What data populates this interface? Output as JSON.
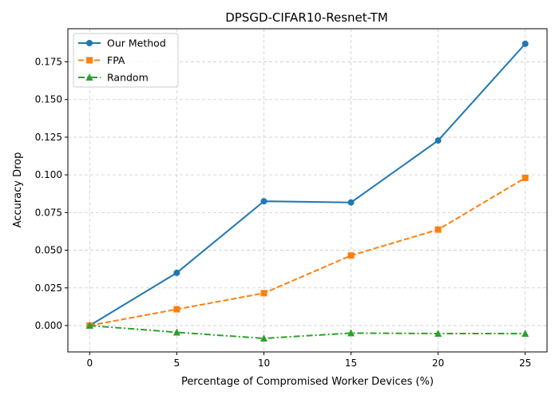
{
  "chart_data": {
    "type": "line",
    "title": "DPSGD-CIFAR10-Resnet-TM",
    "xlabel": "Percentage of Compromised Worker Devices (%)",
    "ylabel": "Accuracy Drop",
    "x": [
      0,
      5,
      10,
      15,
      20,
      25
    ],
    "xticks": [
      "0",
      "5",
      "10",
      "15",
      "20",
      "25"
    ],
    "yticks": [
      "0.000",
      "0.025",
      "0.050",
      "0.075",
      "0.100",
      "0.125",
      "0.150",
      "0.175"
    ],
    "xlim": [
      -1.25,
      26.25
    ],
    "ylim": [
      -0.0175,
      0.197
    ],
    "grid": true,
    "legend_position": "top-left",
    "series": [
      {
        "name": "Our Method",
        "values": [
          0.0,
          0.035,
          0.0825,
          0.0817,
          0.1228,
          0.187
        ],
        "color": "#1f77b4",
        "marker": "circle",
        "linestyle": "solid"
      },
      {
        "name": "FPA",
        "values": [
          0.0,
          0.0108,
          0.0215,
          0.0465,
          0.0637,
          0.098
        ],
        "color": "#ff7f0e",
        "marker": "square",
        "linestyle": "dashed"
      },
      {
        "name": "Random",
        "values": [
          0.0,
          -0.0045,
          -0.0085,
          -0.005,
          -0.0053,
          -0.0053
        ],
        "color": "#2ca02c",
        "marker": "triangle",
        "linestyle": "dashdot"
      }
    ]
  }
}
